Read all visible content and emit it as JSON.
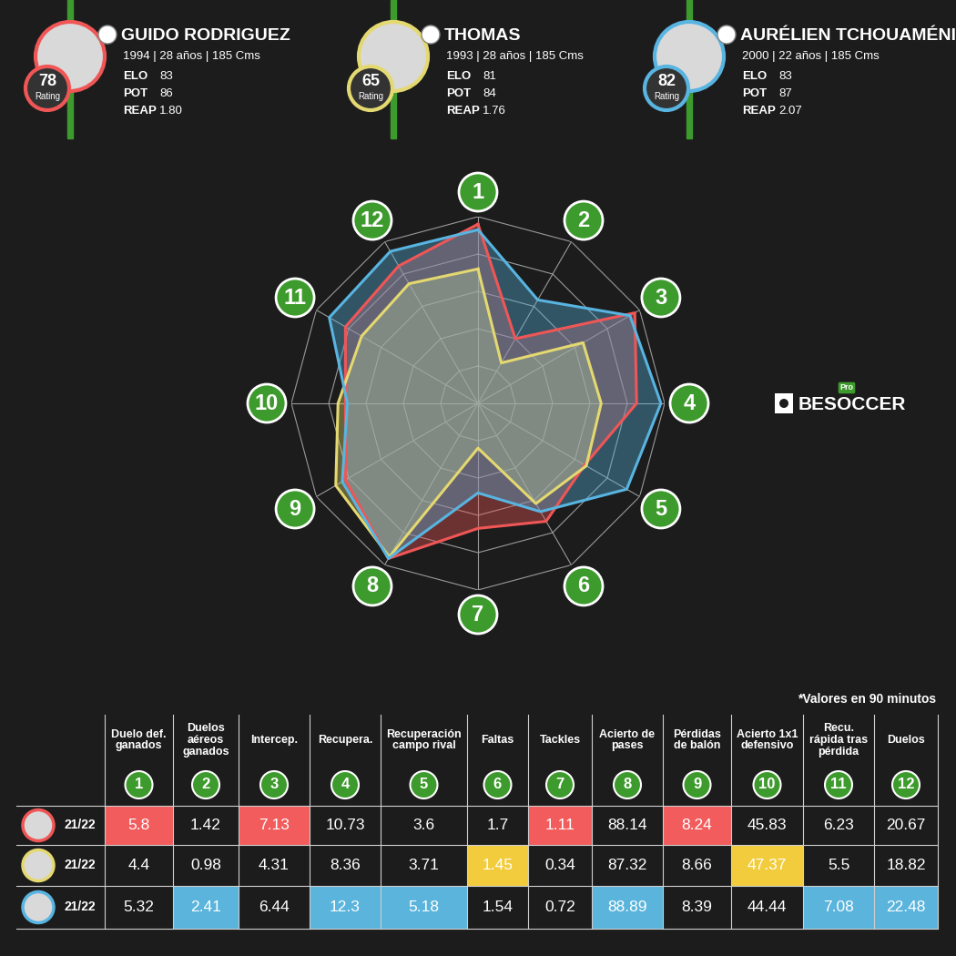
{
  "players": [
    {
      "name": "GUIDO RODRIGUEZ",
      "rating": 78,
      "rating_label": "Rating",
      "info": "1994 | 28 años | 185 Cms",
      "stats": [
        {
          "label": "ELO",
          "value": "83"
        },
        {
          "label": "POT",
          "value": "86"
        },
        {
          "label": "REAP",
          "value": "1.80"
        }
      ]
    },
    {
      "name": "THOMAS",
      "rating": 65,
      "rating_label": "Rating",
      "info": "1993 | 28 años | 185 Cms",
      "stats": [
        {
          "label": "ELO",
          "value": "81"
        },
        {
          "label": "POT",
          "value": "84"
        },
        {
          "label": "REAP",
          "value": "1.76"
        }
      ]
    },
    {
      "name": "AURÉLIEN TCHOUAMÉNI",
      "rating": 82,
      "rating_label": "Rating",
      "info": "2000 | 22 años | 185 Cms",
      "stats": [
        {
          "label": "ELO",
          "value": "83"
        },
        {
          "label": "POT",
          "value": "87"
        },
        {
          "label": "REAP",
          "value": "2.07"
        }
      ]
    }
  ],
  "chart_data": {
    "type": "radar",
    "categories": [
      "1",
      "2",
      "3",
      "4",
      "5",
      "6",
      "7",
      "8",
      "9",
      "10",
      "11",
      "12"
    ],
    "rlim": [
      0,
      100
    ],
    "rticks": [
      0,
      20,
      40,
      60,
      80,
      100
    ],
    "tick_labels": false,
    "grid": true,
    "series": [
      {
        "color": "#f05656",
        "values": [
          96,
          40,
          97,
          85,
          66,
          73,
          67,
          96,
          82,
          71,
          82,
          85
        ]
      },
      {
        "color": "#e4d870",
        "values": [
          72,
          25,
          65,
          66,
          67,
          62,
          24,
          95,
          88,
          75,
          72,
          74
        ]
      },
      {
        "color": "#58b4e0",
        "values": [
          93,
          64,
          94,
          98,
          92,
          67,
          48,
          96,
          84,
          70,
          92,
          94
        ]
      }
    ]
  },
  "brand": {
    "text": "BESOCCER",
    "badge": "Pro"
  },
  "note": "*Valores en 90 minutos",
  "table": {
    "columns": [
      {
        "number": "1",
        "label": "Duelo def.\nganados"
      },
      {
        "number": "2",
        "label": "Duelos\naéreos\nganados"
      },
      {
        "number": "3",
        "label": "Intercep."
      },
      {
        "number": "4",
        "label": "Recupera."
      },
      {
        "number": "5",
        "label": "Recuperación\ncampo rival"
      },
      {
        "number": "6",
        "label": "Faltas"
      },
      {
        "number": "7",
        "label": "Tackles"
      },
      {
        "number": "8",
        "label": "Acierto de\npases"
      },
      {
        "number": "9",
        "label": "Pérdidas\nde balón"
      },
      {
        "number": "10",
        "label": "Acierto 1x1\ndefensivo"
      },
      {
        "number": "11",
        "label": "Recu.\nrápida tras\npérdida"
      },
      {
        "number": "12",
        "label": "Duelos"
      }
    ],
    "rows": [
      {
        "season": "21/22",
        "values": [
          "5.8",
          "1.42",
          "7.13",
          "10.73",
          "3.6",
          "1.7",
          "1.11",
          "88.14",
          "8.24",
          "45.83",
          "6.23",
          "20.67"
        ],
        "colors": [
          "#f25c5c",
          null,
          "#f25c5c",
          null,
          null,
          null,
          "#f25c5c",
          null,
          "#f25c5c",
          null,
          null,
          null
        ]
      },
      {
        "season": "21/22",
        "values": [
          "4.4",
          "0.98",
          "4.31",
          "8.36",
          "3.71",
          "1.45",
          "0.34",
          "87.32",
          "8.66",
          "47.37",
          "5.5",
          "18.82"
        ],
        "colors": [
          null,
          null,
          null,
          null,
          null,
          "#f2cc3d",
          null,
          null,
          null,
          "#f2cc3d",
          null,
          null
        ]
      },
      {
        "season": "21/22",
        "values": [
          "5.32",
          "2.41",
          "6.44",
          "12.3",
          "5.18",
          "1.54",
          "0.72",
          "88.89",
          "8.39",
          "44.44",
          "7.08",
          "22.48"
        ],
        "colors": [
          null,
          "#5ab4dc",
          null,
          "#5ab4dc",
          "#5ab4dc",
          null,
          null,
          "#5ab4dc",
          null,
          null,
          "#5ab4dc",
          "#5ab4dc"
        ]
      }
    ]
  }
}
